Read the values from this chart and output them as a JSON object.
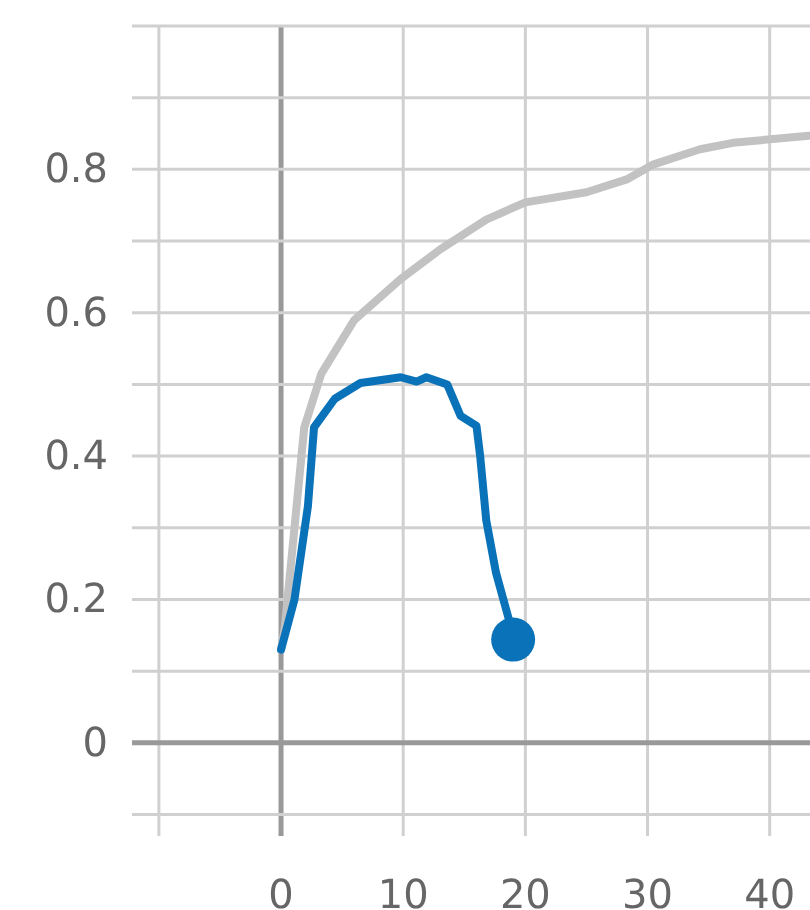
{
  "chart_data": {
    "type": "line",
    "xlim": [
      -12.2,
      43.3
    ],
    "ylim": [
      -0.13,
      1.0
    ],
    "xticks": [
      {
        "value": -10,
        "label": null
      },
      0,
      10,
      20,
      30,
      40
    ],
    "yticks": [
      {
        "value": -0.1,
        "label": null
      },
      0,
      {
        "value": 0.1,
        "label": null
      },
      0.2,
      {
        "value": 0.3,
        "label": null
      },
      0.4,
      {
        "value": 0.5,
        "label": null
      },
      0.6,
      {
        "value": 0.7,
        "label": null
      },
      0.8,
      {
        "value": 0.9,
        "label": null
      },
      {
        "value": 1.0,
        "label": null
      }
    ],
    "grid": true,
    "marker": "none",
    "line_style": "solid",
    "series": [
      {
        "color": "#c2c2c2",
        "x": [
          0,
          0.3,
          1.9,
          3.3,
          6,
          9.8,
          13,
          16.8,
          20,
          25,
          28.3,
          30.5,
          34.3,
          37,
          43.2
        ],
        "values": [
          0.13,
          0.16,
          0.44,
          0.515,
          0.59,
          0.647,
          0.688,
          0.73,
          0.754,
          0.768,
          0.786,
          0.807,
          0.828,
          0.837,
          0.847
        ]
      },
      {
        "color": "#0a72b8",
        "x": [
          0,
          1.1,
          2.2,
          2.7,
          4.4,
          6.5,
          9.8,
          11.1,
          11.9,
          13.6,
          14.7,
          16,
          16.3,
          16.8,
          17.6,
          18.8,
          19
        ],
        "values": [
          0.13,
          0.2,
          0.33,
          0.44,
          0.48,
          0.502,
          0.51,
          0.504,
          0.51,
          0.5,
          0.456,
          0.442,
          0.4,
          0.31,
          0.237,
          0.163,
          0.144
        ]
      },
      {
        "type": "scatter",
        "color": "#0a72b8",
        "x": [
          19
        ],
        "values": [
          0.144
        ],
        "marker": "circle"
      }
    ]
  }
}
